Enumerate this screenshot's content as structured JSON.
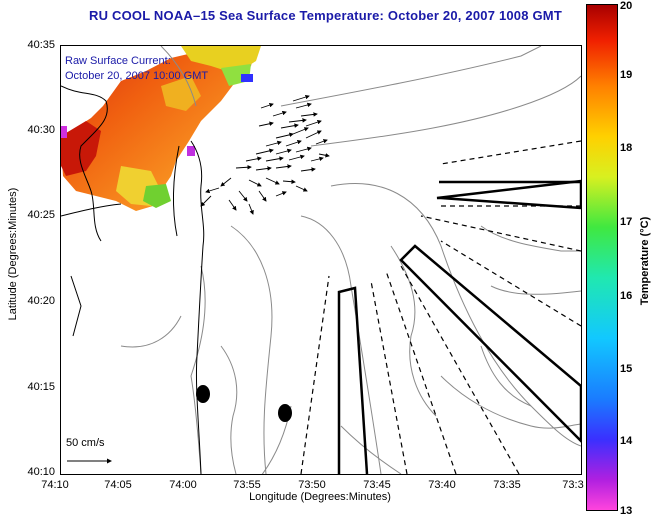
{
  "title": "RU COOL  NOAA–15  Sea Surface Temperature:  October 20, 2007 1008 GMT",
  "current_label_line1": "Raw Surface Current:",
  "current_label_line2": "October 20, 2007 10:00 GMT",
  "scale_label": "50 cm/s",
  "axes": {
    "ylabel": "Latitude (Degrees:Minutes)",
    "xlabel": "Longitude (Degrees:Minutes)",
    "yticks": [
      "40:35",
      "40:30",
      "40:25",
      "40:20",
      "40:15",
      "40:10"
    ],
    "xticks": [
      "74:10",
      "74:05",
      "74:00",
      "73:55",
      "73:50",
      "73:45",
      "73:40",
      "73:35",
      "73:3"
    ]
  },
  "colorbar": {
    "label": "Temperature (°C)",
    "ticks": [
      "20",
      "19",
      "18",
      "17",
      "16",
      "15",
      "14",
      "13"
    ],
    "min": 13,
    "max": 20
  },
  "colors": {
    "title": "#1a1aa8",
    "contour": "#8a8a8a"
  }
}
